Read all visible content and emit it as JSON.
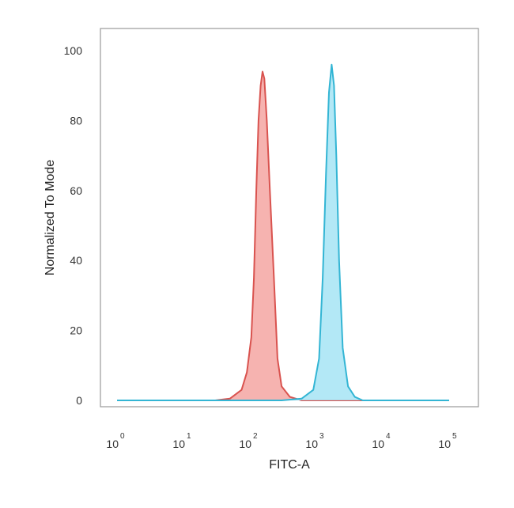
{
  "chart_data": {
    "type": "area",
    "xlabel": "FITC-A",
    "ylabel": "Normalized To Mode",
    "x_scale": "log",
    "xlim": [
      1,
      100000
    ],
    "ylim": [
      0,
      100
    ],
    "x_ticks": [
      {
        "base": "10",
        "exp": "0",
        "value": 1
      },
      {
        "base": "10",
        "exp": "1",
        "value": 10
      },
      {
        "base": "10",
        "exp": "2",
        "value": 100
      },
      {
        "base": "10",
        "exp": "3",
        "value": 1000
      },
      {
        "base": "10",
        "exp": "4",
        "value": 10000
      },
      {
        "base": "10",
        "exp": "5",
        "value": 100000
      }
    ],
    "y_ticks": [
      "0",
      "20",
      "40",
      "60",
      "80",
      "100"
    ],
    "grid": false,
    "series": [
      {
        "color": "#d9534f",
        "fill": "#f4a6a2",
        "x": [
          1,
          30,
          50,
          75,
          90,
          105,
          115,
          125,
          135,
          145,
          155,
          165,
          180,
          200,
          230,
          260,
          300,
          400,
          600,
          100000
        ],
        "y": [
          0,
          0,
          0.5,
          3,
          8,
          18,
          35,
          60,
          80,
          90,
          94,
          92,
          80,
          60,
          35,
          12,
          4,
          1,
          0,
          0
        ]
      },
      {
        "color": "#33b5d4",
        "fill": "#a6e4f5",
        "x": [
          1,
          300,
          600,
          900,
          1100,
          1250,
          1400,
          1550,
          1700,
          1850,
          2000,
          2200,
          2500,
          3000,
          3800,
          5000,
          100000
        ],
        "y": [
          0,
          0,
          0.5,
          3,
          12,
          35,
          65,
          88,
          96,
          90,
          70,
          40,
          15,
          4,
          1,
          0,
          0
        ]
      }
    ]
  }
}
